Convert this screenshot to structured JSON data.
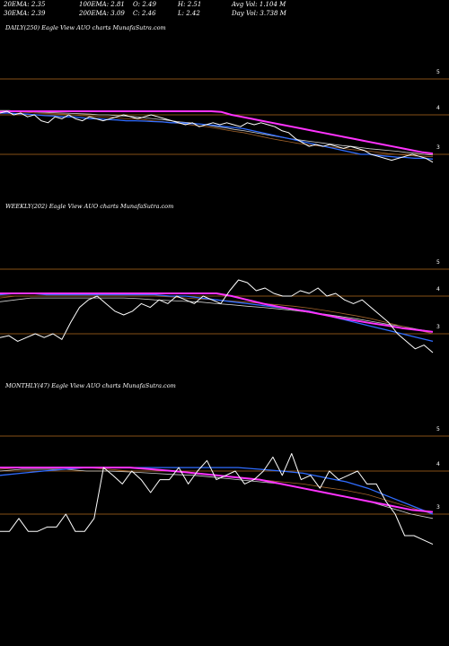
{
  "stats": {
    "row1": [
      "20EMA: 2.35",
      "100EMA: 2.81",
      "O: 2.49",
      "H: 2.51",
      "Avg Vol: 1.104  M"
    ],
    "row2": [
      "30EMA: 2.39",
      "200EMA: 3.09",
      "C: 2.46",
      "L: 2.42",
      "Day Vol: 3.738  M"
    ]
  },
  "colors": {
    "background": "#000000",
    "price": "#ffffff",
    "level_line": "#b36a1e",
    "ema_magenta": "#ff33ff",
    "ema_blue": "#2f6cff",
    "ema_brown": "#a0622a",
    "ema_grey": "#cfcfcf"
  },
  "chart_data": [
    {
      "type": "line",
      "title": "DAILY(250) Eagle  View  AUO charts MunafaSutra.com",
      "y_ticks": [
        "5",
        "4",
        "3"
      ],
      "series": [
        {
          "values": [
            4.05,
            4.1,
            4.0,
            4.05,
            3.95,
            4.0,
            3.85,
            3.8,
            3.95,
            3.9,
            4.0,
            3.9,
            3.85,
            3.95,
            3.9,
            3.85,
            3.9,
            3.95,
            4.0,
            3.95,
            3.9,
            3.95,
            4.0,
            3.95,
            3.9,
            3.85,
            3.8,
            3.75,
            3.8,
            3.7,
            3.75,
            3.8,
            3.75,
            3.8,
            3.75,
            3.7,
            3.8,
            3.75,
            3.8,
            3.75,
            3.7,
            3.6,
            3.55,
            3.4,
            3.3,
            3.2,
            3.25,
            3.2,
            3.25,
            3.2,
            3.15,
            3.2,
            3.15,
            3.1,
            3.0,
            2.95,
            2.9,
            2.85,
            2.9,
            2.95,
            3.0,
            2.95,
            2.9,
            2.8
          ]
        },
        {
          "values": [
            4.05,
            4.05,
            4.03,
            4.02,
            4.0,
            3.98,
            3.97,
            3.95,
            3.95,
            3.93,
            3.9,
            3.9,
            3.88,
            3.87,
            3.85,
            3.85,
            3.84,
            3.83,
            3.82,
            3.8,
            3.8,
            3.78,
            3.77,
            3.75,
            3.73,
            3.7,
            3.68,
            3.65,
            3.6,
            3.55,
            3.5,
            3.45,
            3.4,
            3.35,
            3.3,
            3.25,
            3.2,
            3.15,
            3.1,
            3.05,
            3.0,
            3.0,
            2.97,
            2.95,
            2.93,
            2.92,
            2.9,
            2.9,
            2.88
          ]
        },
        {
          "values": [
            4.1,
            4.1,
            4.08,
            4.07,
            4.05,
            4.04,
            4.03,
            4.02,
            4.0,
            3.98,
            3.97,
            3.95,
            3.95,
            3.93,
            3.9,
            3.9,
            3.88,
            3.85,
            3.83,
            3.8,
            3.78,
            3.75,
            3.72,
            3.7,
            3.66,
            3.62,
            3.58,
            3.55,
            3.5,
            3.45,
            3.4,
            3.36,
            3.32,
            3.28,
            3.25,
            3.22,
            3.2,
            3.18,
            3.15,
            3.12,
            3.1,
            3.08,
            3.05,
            3.02,
            3.0,
            2.98,
            2.96,
            2.95,
            2.94
          ]
        },
        {
          "values": [
            4.12,
            4.12,
            4.1,
            4.1,
            4.08,
            4.07,
            4.06,
            4.05,
            4.04,
            4.03,
            4.02,
            4.0,
            4.0,
            3.98,
            3.97,
            3.95,
            3.93,
            3.9,
            3.88,
            3.85,
            3.82,
            3.8,
            3.77,
            3.74,
            3.7,
            3.67,
            3.63,
            3.6,
            3.56,
            3.52,
            3.48,
            3.44,
            3.4,
            3.37,
            3.34,
            3.31,
            3.28,
            3.25,
            3.22,
            3.2,
            3.17,
            3.14,
            3.12,
            3.1,
            3.08,
            3.05,
            3.03,
            3.0,
            2.98
          ]
        },
        {
          "values": [
            4.08,
            4.1,
            4.1,
            4.1,
            4.1,
            4.1,
            4.1,
            4.1,
            4.1,
            4.1,
            4.1,
            4.1,
            4.1,
            4.1,
            4.1,
            4.1,
            4.1,
            4.1,
            4.1,
            4.1,
            4.1,
            4.1,
            4.08,
            4.0,
            3.95,
            3.9,
            3.85,
            3.8,
            3.75,
            3.7,
            3.65,
            3.6,
            3.55,
            3.5,
            3.45,
            3.4,
            3.35,
            3.3,
            3.25,
            3.2,
            3.15,
            3.1,
            3.05,
            3.02
          ]
        }
      ]
    },
    {
      "type": "line",
      "title": "WEEKLY(202) Eagle  View  AUO charts MunafaSutra.com",
      "y_ticks": [
        "5",
        "4",
        "3"
      ],
      "series": [
        {
          "values": [
            2.9,
            2.95,
            2.8,
            2.9,
            3.0,
            2.9,
            3.0,
            2.85,
            3.3,
            3.7,
            3.9,
            4.0,
            3.8,
            3.6,
            3.5,
            3.6,
            3.8,
            3.7,
            3.9,
            3.8,
            4.0,
            3.9,
            3.8,
            4.0,
            3.9,
            3.8,
            4.2,
            4.6,
            4.5,
            4.2,
            4.3,
            4.1,
            4.0,
            4.0,
            4.2,
            4.1,
            4.3,
            4.0,
            4.1,
            3.9,
            3.8,
            3.9,
            3.7,
            3.5,
            3.3,
            3.0,
            2.8,
            2.6,
            2.7,
            2.5
          ]
        },
        {
          "values": [
            4.05,
            4.1,
            4.1,
            4.05,
            4.05,
            4.05,
            4.05,
            4.05,
            4.05,
            4.05,
            4.05,
            4.0,
            4.0,
            3.95,
            3.9,
            3.85,
            3.8,
            3.75,
            3.7,
            3.65,
            3.6,
            3.5,
            3.4,
            3.3,
            3.2,
            3.1,
            3.0,
            2.9,
            2.8
          ]
        },
        {
          "values": [
            3.95,
            4.0,
            4.0,
            4.0,
            4.0,
            4.0,
            4.0,
            4.0,
            4.0,
            4.0,
            4.0,
            3.98,
            3.95,
            3.92,
            3.9,
            3.87,
            3.84,
            3.8,
            3.77,
            3.73,
            3.68,
            3.62,
            3.55,
            3.48,
            3.4,
            3.3,
            3.2,
            3.1,
            3.0
          ]
        },
        {
          "values": [
            3.85,
            3.9,
            3.95,
            3.95,
            3.95,
            3.95,
            3.95,
            3.95,
            3.95,
            3.93,
            3.9,
            3.88,
            3.86,
            3.84,
            3.8,
            3.77,
            3.73,
            3.7,
            3.66,
            3.62,
            3.57,
            3.52,
            3.46,
            3.4,
            3.33,
            3.26,
            3.2,
            3.12,
            3.05
          ]
        },
        {
          "values": [
            4.1,
            4.1,
            4.1,
            4.1,
            4.1,
            4.1,
            4.1,
            4.1,
            4.1,
            4.1,
            4.1,
            4.1,
            4.1,
            4.1,
            4.1,
            4.0,
            3.9,
            3.8,
            3.72,
            3.65,
            3.58,
            3.5,
            3.42,
            3.35,
            3.28,
            3.22,
            3.15,
            3.1,
            3.05
          ]
        }
      ]
    },
    {
      "type": "line",
      "title": "MONTHLY(47) Eagle  View  AUO charts MunafaSutra.com",
      "y_ticks": [
        "5",
        "4",
        "3"
      ],
      "series": [
        {
          "values": [
            2.6,
            2.6,
            2.9,
            2.6,
            2.6,
            2.7,
            2.7,
            3.0,
            2.6,
            2.6,
            2.9,
            4.1,
            3.9,
            3.7,
            4.0,
            3.8,
            3.5,
            3.8,
            3.8,
            4.1,
            3.7,
            4.0,
            4.3,
            3.8,
            3.9,
            4.0,
            3.7,
            3.8,
            4.0,
            4.4,
            3.9,
            4.5,
            3.8,
            3.9,
            3.6,
            4.0,
            3.8,
            3.9,
            4.0,
            3.7,
            3.7,
            3.3,
            3.0,
            2.5,
            2.5,
            2.4,
            2.3
          ]
        },
        {
          "values": [
            3.9,
            3.95,
            4.0,
            4.05,
            4.1,
            4.1,
            4.1,
            4.1,
            4.1,
            4.1,
            4.1,
            4.1,
            4.05,
            4.0,
            3.95,
            3.85,
            3.75,
            3.6,
            3.4,
            3.2,
            3.0
          ]
        },
        {
          "values": [
            4.05,
            4.1,
            4.1,
            4.1,
            4.1,
            4.05,
            4.0,
            4.0,
            4.0,
            3.95,
            3.9,
            3.85,
            3.8,
            3.75,
            3.7,
            3.62,
            3.55,
            3.45,
            3.3,
            3.15,
            3.0
          ]
        },
        {
          "values": [
            4.0,
            4.05,
            4.05,
            4.05,
            4.0,
            4.0,
            3.98,
            3.95,
            3.92,
            3.9,
            3.85,
            3.8,
            3.75,
            3.7,
            3.6,
            3.5,
            3.4,
            3.3,
            3.15,
            3.0,
            2.9
          ]
        },
        {
          "values": [
            4.1,
            4.1,
            4.1,
            4.1,
            4.1,
            4.1,
            4.1,
            4.05,
            4.0,
            3.95,
            3.9,
            3.85,
            3.8,
            3.7,
            3.6,
            3.5,
            3.4,
            3.3,
            3.2,
            3.1,
            3.05
          ]
        }
      ]
    }
  ]
}
